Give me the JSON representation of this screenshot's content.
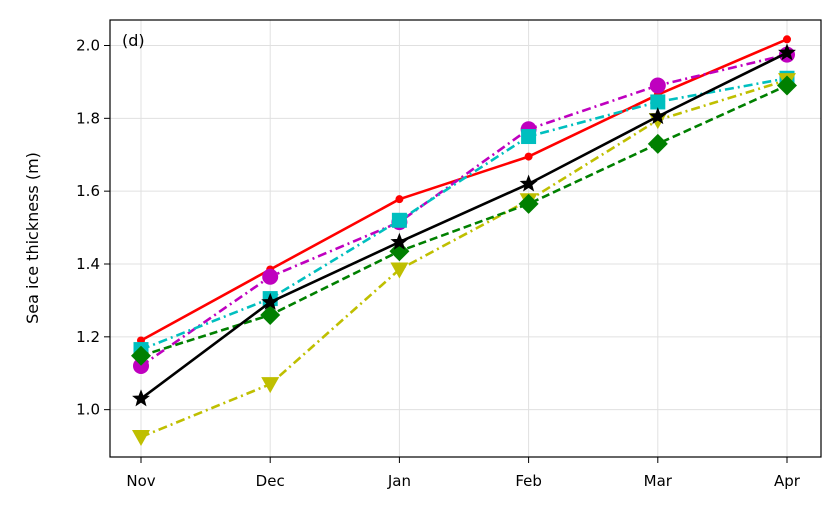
{
  "chart_data": {
    "type": "line",
    "panel_label": "(d)",
    "xlabel": "",
    "ylabel": "Sea ice thickness (m)",
    "categories": [
      "Nov",
      "Dec",
      "Jan",
      "Feb",
      "Mar",
      "Apr"
    ],
    "ylim": [
      0.87,
      2.07
    ],
    "yticks": [
      1.0,
      1.2,
      1.4,
      1.6,
      1.8,
      2.0
    ],
    "ytick_labels": [
      "1.0",
      "1.2",
      "1.4",
      "1.6",
      "1.8",
      "2.0"
    ],
    "grid": true,
    "legend": "none",
    "series": [
      {
        "values": [
          1.19,
          1.385,
          1.578,
          1.695,
          1.865,
          2.017
        ],
        "color": "#ff0000",
        "dash": "solid",
        "marker": "circle-small"
      },
      {
        "values": [
          1.12,
          1.365,
          1.515,
          1.77,
          1.89,
          1.975
        ],
        "color": "#bf00bf",
        "dash": "dashdot",
        "marker": "circle"
      },
      {
        "values": [
          1.165,
          1.305,
          1.52,
          1.75,
          1.845,
          1.91
        ],
        "color": "#00bfbf",
        "dash": "dashdot",
        "marker": "square"
      },
      {
        "values": [
          0.925,
          1.07,
          1.385,
          1.575,
          1.795,
          1.905
        ],
        "color": "#bfbf00",
        "dash": "dashdot",
        "marker": "triangle-down"
      },
      {
        "values": [
          1.148,
          1.26,
          1.435,
          1.565,
          1.73,
          1.89
        ],
        "color": "#008000",
        "dash": "dashed",
        "marker": "diamond"
      },
      {
        "values": [
          1.03,
          1.295,
          1.46,
          1.62,
          1.805,
          1.98
        ],
        "color": "#000000",
        "dash": "solid",
        "marker": "star"
      }
    ]
  }
}
